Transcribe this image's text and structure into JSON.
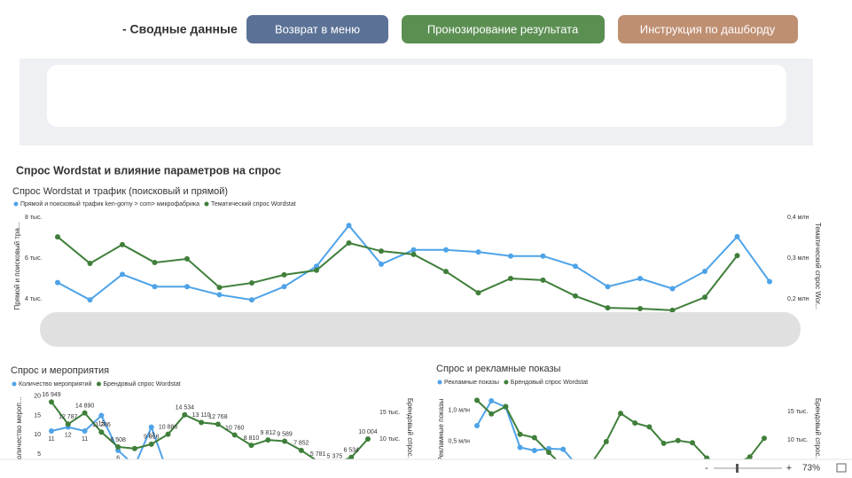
{
  "header": {
    "title": "- Сводные данные",
    "buttons": [
      "Возврат в меню",
      "Пронозирование результата",
      "Инструкция по дашборду"
    ]
  },
  "section_title": "Спрос Wordstat и влияние параметров на спрос",
  "status_bar": {
    "zoom_out": "-",
    "zoom_in": "+",
    "zoom": "73%"
  },
  "chart_data": [
    {
      "type": "line",
      "title": "Спрос Wordstat и трафик (поисковый и прямой)",
      "y_label": "Прямой и поисковый тра...",
      "y2_label": "Тематический спрос Wor...",
      "categories": [
        null,
        null,
        null,
        null,
        null,
        null,
        null,
        null,
        null,
        null,
        null,
        null,
        null,
        null,
        null,
        null,
        null,
        null,
        null,
        null,
        null,
        null,
        null
      ],
      "ylim": [
        3000,
        8500
      ],
      "yticks": [
        {
          "value": 4000,
          "label": "4 тыс."
        },
        {
          "value": 6000,
          "label": "6 тыс."
        },
        {
          "value": 8000,
          "label": "8 тыс."
        }
      ],
      "y2lim": [
        150000,
        425000
      ],
      "y2ticks": [
        {
          "value": 200000,
          "label": "0,2 млн"
        },
        {
          "value": 300000,
          "label": "0,3 млн"
        },
        {
          "value": 400000,
          "label": "0,4 млн"
        }
      ],
      "series": [
        {
          "name": "Прямой и поисковый трафик ken-gorny > com> микрофабрика",
          "color": "#4ea3e8",
          "values": [
            4800,
            3950,
            5200,
            4600,
            4600,
            4200,
            3950,
            4600,
            5600,
            7600,
            5700,
            6400,
            6400,
            6300,
            6100,
            6100,
            5600,
            4600,
            5000,
            4500,
            5350,
            7050,
            4850
          ]
        },
        {
          "name": "Тематический спрос Wordstat",
          "color": "#3f7f3a",
          "axis": "y2",
          "values": [
            352000,
            287000,
            333000,
            289000,
            298000,
            228000,
            239000,
            259000,
            270000,
            337000,
            317000,
            309000,
            267000,
            215000,
            250000,
            246000,
            207000,
            178000,
            176000,
            172000,
            204000,
            306000,
            null
          ]
        }
      ]
    },
    {
      "type": "line",
      "title": "Спрос и мероприятия",
      "y_label": "Количество мероп...",
      "y2_label": "Брендовый спрос...",
      "categories": [
        null,
        null,
        null,
        null,
        null,
        null,
        null,
        null,
        null,
        null,
        null,
        null,
        null,
        null,
        null,
        null,
        null,
        null,
        null,
        null
      ],
      "ylim": [
        0,
        22
      ],
      "yticks": [
        5,
        10,
        15,
        20
      ],
      "y2lim": [
        3500,
        19500
      ],
      "y2ticks": [
        {
          "value": 10000,
          "label": "10 тыс."
        },
        {
          "value": 15000,
          "label": "15 тыс."
        }
      ],
      "series": [
        {
          "name": "Количество мероприятий",
          "color": "#4ea3e8",
          "show_labels": true,
          "values": [
            11,
            12,
            11,
            15,
            6,
            2,
            12,
            0,
            null,
            null,
            null,
            null,
            null,
            null,
            null,
            null,
            null,
            null,
            null,
            null
          ]
        },
        {
          "name": "Брендовый спрос Wordstat",
          "color": "#3f7f3a",
          "axis": "y2",
          "values": [
            16949,
            12787,
            14890,
            11286,
            8508,
            8200,
            9016,
            10886,
            14534,
            13110,
            12768,
            10760,
            8810,
            9812,
            9589,
            7852,
            5781,
            5375,
            6534,
            10004
          ],
          "value_labels": [
            "16 949",
            "12 787",
            "14 890",
            "11 286",
            "8 508",
            null,
            "9 016",
            "10 886",
            "14 534",
            "13 110",
            "12 768",
            "10 760",
            "8 810",
            "9 812",
            "9 589",
            "7 852",
            "5 781",
            "5 375",
            "6 534",
            "10 004"
          ]
        }
      ]
    },
    {
      "type": "line",
      "title": "Спрос и рекламные показы",
      "y_label": "Рекламные показы",
      "y2_label": "Брендовый спрос...",
      "categories": [
        null,
        null,
        null,
        null,
        null,
        null,
        null,
        null,
        null,
        null,
        null,
        null,
        null,
        null,
        null,
        null,
        null,
        null,
        null,
        null,
        null
      ],
      "ylim": [
        0,
        1350000
      ],
      "yticks": [
        {
          "value": 500000,
          "label": "0,5 млн"
        },
        {
          "value": 1000000,
          "label": "1,0 млн"
        }
      ],
      "y2lim": [
        4300,
        19100
      ],
      "y2ticks": [
        {
          "value": 10000,
          "label": "10 тыс."
        },
        {
          "value": 15000,
          "label": "15 тыс."
        }
      ],
      "series": [
        {
          "name": "Рекламные показы",
          "color": "#4ea3e8",
          "values": [
            750000,
            1150000,
            1050000,
            400000,
            350000,
            380000,
            370000,
            100000,
            null,
            null,
            null,
            null,
            null,
            null,
            null,
            null,
            null,
            null,
            null,
            null,
            null
          ]
        },
        {
          "name": "Брендовый спрос Wordstat",
          "color": "#3f7f3a",
          "axis": "y2",
          "values": [
            17000,
            14600,
            15900,
            11000,
            10400,
            7800,
            5300,
            5500,
            6000,
            9700,
            14700,
            13000,
            12300,
            9400,
            9900,
            9500,
            6800,
            5500,
            5800,
            7000,
            10300
          ]
        }
      ]
    }
  ]
}
